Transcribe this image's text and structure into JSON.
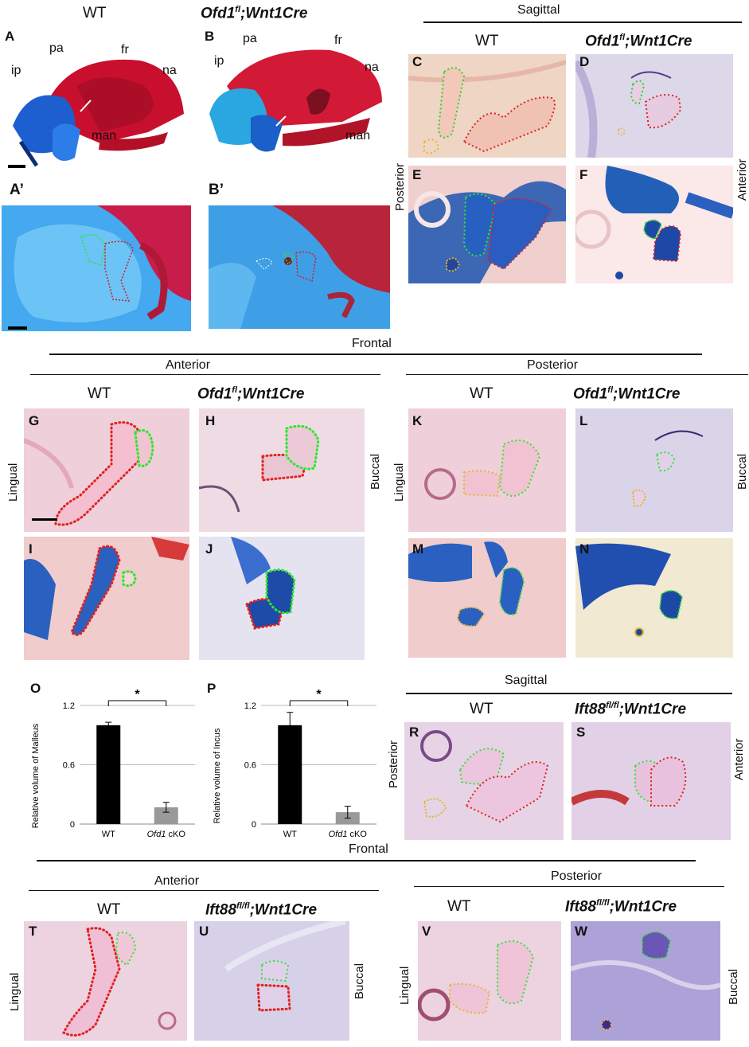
{
  "top": {
    "wt": "WT",
    "mutant": "Ofd1",
    "mutant_sup": "fl",
    "mutant_rest": ";Wnt1Cre",
    "sagittal": "Sagittal",
    "posterior": "Posterior",
    "anterior": "Anterior"
  },
  "skull_labels": {
    "ip": "ip",
    "pa": "pa",
    "fr": "fr",
    "na": "na",
    "man": "man"
  },
  "panels": {
    "A": "A",
    "A2": "A’",
    "B": "B",
    "B2": "B’",
    "C": "C",
    "D": "D",
    "E": "E",
    "F": "F",
    "G": "G",
    "H": "H",
    "I": "I",
    "J": "J",
    "K": "K",
    "L": "L",
    "M": "M",
    "N": "N",
    "O": "O",
    "P": "P",
    "R": "R",
    "S": "S",
    "T": "T",
    "U": "U",
    "V": "V",
    "W": "W"
  },
  "frontal": {
    "frontal": "Frontal",
    "anterior": "Anterior",
    "posterior": "Posterior",
    "lingual": "Lingual",
    "buccal": "Buccal"
  },
  "ift": {
    "name": "Ift88",
    "sup": "fl/fl",
    "rest": ";Wnt1Cre"
  },
  "chart_data": [
    {
      "type": "bar",
      "ylabel": "Relative volume of Malleus",
      "categories": [
        "WT",
        "Ofd1 cKO"
      ],
      "category_italic": "Ofd1",
      "category_suffix": " cKO",
      "values": [
        1.0,
        0.17
      ],
      "errors": [
        0.03,
        0.05
      ],
      "colors": [
        "#000000",
        "#999999"
      ],
      "ylim": [
        0,
        1.2
      ],
      "yticks": [
        "0",
        "0.6",
        "1.2"
      ],
      "grid": true,
      "significance": "*"
    },
    {
      "type": "bar",
      "ylabel": "Relative volume of Incus",
      "categories": [
        "WT",
        "Ofd1 cKO"
      ],
      "category_italic": "Ofd1",
      "category_suffix": " cKO",
      "values": [
        1.0,
        0.12
      ],
      "errors": [
        0.13,
        0.06
      ],
      "colors": [
        "#000000",
        "#999999"
      ],
      "ylim": [
        0,
        1.2
      ],
      "yticks": [
        "0",
        "0.6",
        "1.2"
      ],
      "grid": true,
      "significance": "*"
    }
  ]
}
